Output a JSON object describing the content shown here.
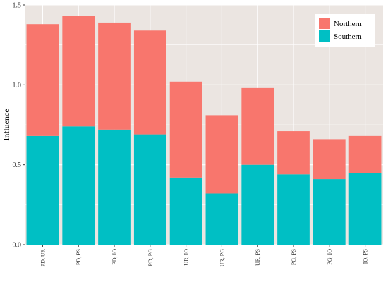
{
  "chart_data": {
    "type": "bar",
    "stacked": true,
    "title": "",
    "xlabel": "",
    "ylabel": "Influence",
    "ylim": [
      0,
      1.5
    ],
    "yticks": [
      "0.0",
      "0.5",
      "1.0",
      "1.5"
    ],
    "ytick_values": [
      0,
      0.5,
      1.0,
      1.5
    ],
    "grid": true,
    "legend_position": "top-right",
    "categories": [
      "PD, UR",
      "PD, PS",
      "PD, IO",
      "PD, PG",
      "UR, IO",
      "UR, PG",
      "UR, PS",
      "PG, PS",
      "PG, IO",
      "IO, PS"
    ],
    "series": [
      {
        "name": "Southern",
        "color": "#00BFC4",
        "values": [
          0.68,
          0.74,
          0.72,
          0.69,
          0.42,
          0.32,
          0.5,
          0.44,
          0.41,
          0.45
        ]
      },
      {
        "name": "Northern",
        "color": "#F8766D",
        "values": [
          0.7,
          0.69,
          0.67,
          0.65,
          0.6,
          0.49,
          0.48,
          0.27,
          0.25,
          0.23
        ]
      }
    ],
    "legend_order": [
      "Northern",
      "Southern"
    ],
    "panel_background": "#EBE5E1",
    "grid_color": "#FFFFFF"
  }
}
